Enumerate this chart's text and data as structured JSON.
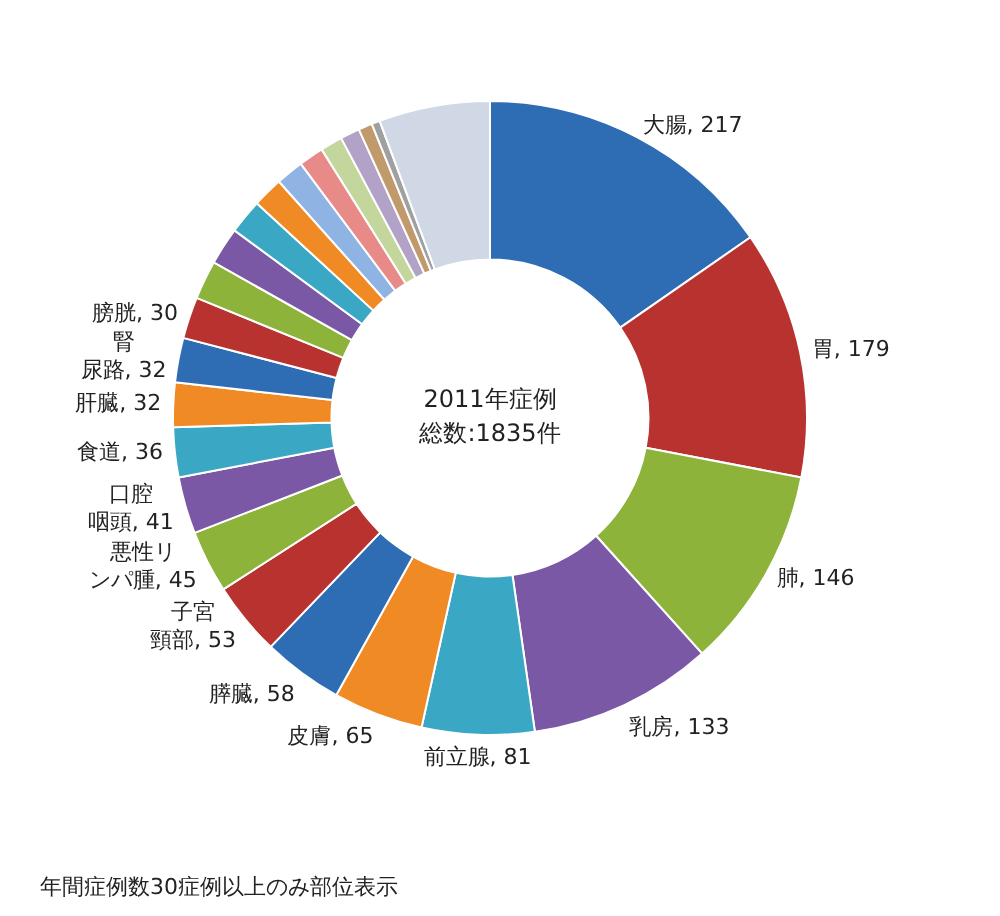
{
  "chart_data": {
    "type": "donut",
    "categories": [
      "大腸",
      "胃",
      "肺",
      "乳房",
      "前立腺",
      "皮膚",
      "膵臓",
      "子宮頸部",
      "悪性リンパ腫",
      "口腔咽頭",
      "食道",
      "肝臓",
      "腎尿路",
      "膀胱",
      null,
      null,
      null,
      null,
      null,
      null,
      null,
      null,
      null,
      null,
      null
    ],
    "values": [
      217,
      179,
      146,
      133,
      81,
      65,
      58,
      53,
      45,
      41,
      36,
      32,
      32,
      30,
      28,
      27,
      25,
      22,
      20,
      18,
      16,
      14,
      10,
      6,
      80
    ],
    "value_labels": [
      "217",
      "179",
      "146",
      "133",
      "81",
      "65",
      "58",
      "53",
      "45",
      "41",
      "36",
      "32",
      "32",
      "30",
      null,
      null,
      null,
      null,
      null,
      null,
      null,
      null,
      null,
      null,
      null
    ],
    "colors": [
      "#2e6db4",
      "#b8322f",
      "#8db33a",
      "#7b58a6",
      "#3aa8c4",
      "#f08a24",
      "#2e6db4",
      "#b8322f",
      "#8db33a",
      "#7b58a6",
      "#3aa8c4",
      "#f08a24",
      "#2e6db4",
      "#b8322f",
      "#8db33a",
      "#7b58a6",
      "#3aa8c4",
      "#f08a24",
      "#8fb4e3",
      "#e88a88",
      "#c3d69b",
      "#b3a2c7",
      "#c09a6b",
      "#a0a0a0",
      "#d0d8e6"
    ],
    "annotations": [
      "2011年症例",
      "総数:1835件",
      "年間症例数30症例以上のみ部位表示"
    ],
    "legend": false
  }
}
